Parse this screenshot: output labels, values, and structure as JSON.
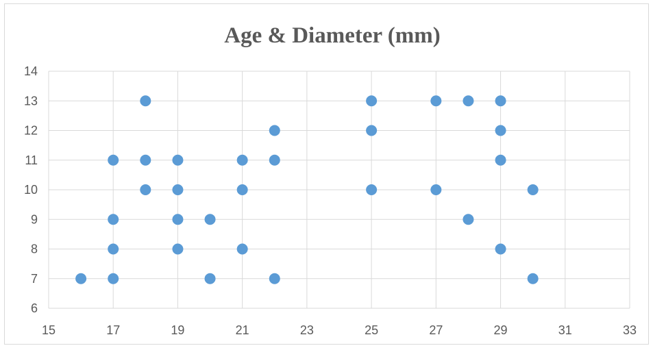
{
  "chart_data": {
    "type": "scatter",
    "title": "Age & Diameter (mm)",
    "xlabel": "",
    "ylabel": "",
    "xlim": [
      15,
      33
    ],
    "ylim": [
      6,
      14
    ],
    "x_ticks": [
      15,
      17,
      19,
      21,
      23,
      25,
      27,
      29,
      31,
      33
    ],
    "y_ticks": [
      6,
      7,
      8,
      9,
      10,
      11,
      12,
      13,
      14
    ],
    "grid": true,
    "legend": "none",
    "marker_color": "#5b9bd5",
    "series": [
      {
        "points": [
          [
            16,
            7
          ],
          [
            17,
            7
          ],
          [
            17,
            8
          ],
          [
            17,
            9
          ],
          [
            17,
            11
          ],
          [
            18,
            10
          ],
          [
            18,
            11
          ],
          [
            18,
            13
          ],
          [
            19,
            8
          ],
          [
            19,
            9
          ],
          [
            19,
            10
          ],
          [
            19,
            11
          ],
          [
            20,
            7
          ],
          [
            20,
            9
          ],
          [
            21,
            8
          ],
          [
            21,
            10
          ],
          [
            21,
            11
          ],
          [
            22,
            7
          ],
          [
            22,
            11
          ],
          [
            22,
            12
          ],
          [
            25,
            10
          ],
          [
            25,
            12
          ],
          [
            25,
            13
          ],
          [
            27,
            10
          ],
          [
            27,
            13
          ],
          [
            28,
            9
          ],
          [
            28,
            13
          ],
          [
            29,
            8
          ],
          [
            29,
            11
          ],
          [
            29,
            12
          ],
          [
            29,
            13
          ],
          [
            30,
            7
          ],
          [
            30,
            10
          ]
        ]
      }
    ]
  }
}
